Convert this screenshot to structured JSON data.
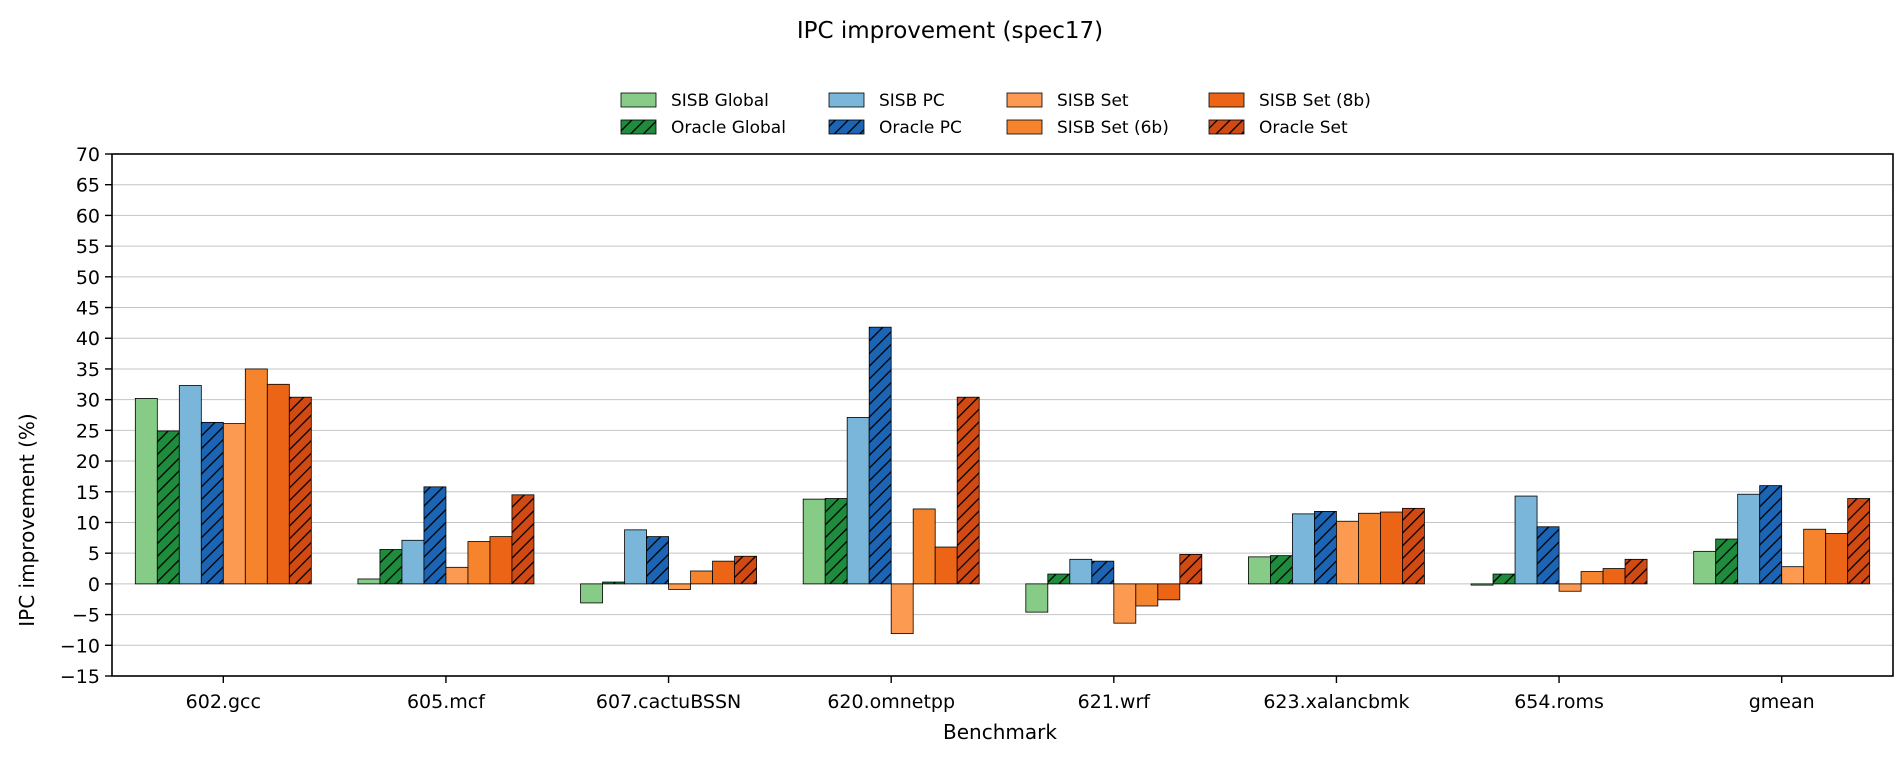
{
  "chart_data": {
    "type": "bar",
    "title": "IPC improvement (spec17)",
    "xlabel": "Benchmark",
    "ylabel": "IPC improvement (%)",
    "ylim": [
      -15,
      70
    ],
    "yticks": [
      -15,
      -10,
      -5,
      0,
      5,
      10,
      15,
      20,
      25,
      30,
      35,
      40,
      45,
      50,
      55,
      60,
      65,
      70
    ],
    "grid": "horizontal",
    "legend_placement": "top-center",
    "categories": [
      "602.gcc",
      "605.mcf",
      "607.cactuBSSN",
      "620.omnetpp",
      "621.wrf",
      "623.xalancbmk",
      "654.roms",
      "gmean"
    ],
    "series": [
      {
        "name": "SISB Global",
        "color": "#86cc86",
        "hatch": false,
        "values": [
          30.2,
          0.8,
          -3.1,
          13.8,
          -4.6,
          4.4,
          -0.2,
          5.3
        ]
      },
      {
        "name": "Oracle Global",
        "color": "#1e8c3c",
        "hatch": true,
        "values": [
          24.9,
          5.6,
          0.3,
          13.9,
          1.6,
          4.6,
          1.6,
          7.3
        ]
      },
      {
        "name": "SISB PC",
        "color": "#7ab6d9",
        "hatch": false,
        "values": [
          32.3,
          7.1,
          8.8,
          27.1,
          4.0,
          11.4,
          14.3,
          14.6
        ]
      },
      {
        "name": "Oracle PC",
        "color": "#1c64b4",
        "hatch": true,
        "values": [
          26.3,
          15.8,
          7.7,
          41.8,
          3.7,
          11.8,
          9.3,
          16.0
        ]
      },
      {
        "name": "SISB Set",
        "color": "#fb9a50",
        "hatch": false,
        "values": [
          26.1,
          2.7,
          -0.9,
          -8.1,
          -6.4,
          10.2,
          -1.2,
          2.8
        ]
      },
      {
        "name": "SISB Set (6b)",
        "color": "#f5842d",
        "hatch": false,
        "values": [
          35.0,
          6.9,
          2.1,
          12.2,
          -3.6,
          11.5,
          2.0,
          8.9
        ]
      },
      {
        "name": "SISB Set (8b)",
        "color": "#ec6416",
        "hatch": false,
        "values": [
          32.5,
          7.7,
          3.7,
          6.0,
          -2.6,
          11.7,
          2.5,
          8.2
        ]
      },
      {
        "name": "Oracle Set",
        "color": "#d14a14",
        "hatch": true,
        "values": [
          30.4,
          14.5,
          4.5,
          30.4,
          4.8,
          12.3,
          4.0,
          13.9
        ]
      }
    ]
  }
}
